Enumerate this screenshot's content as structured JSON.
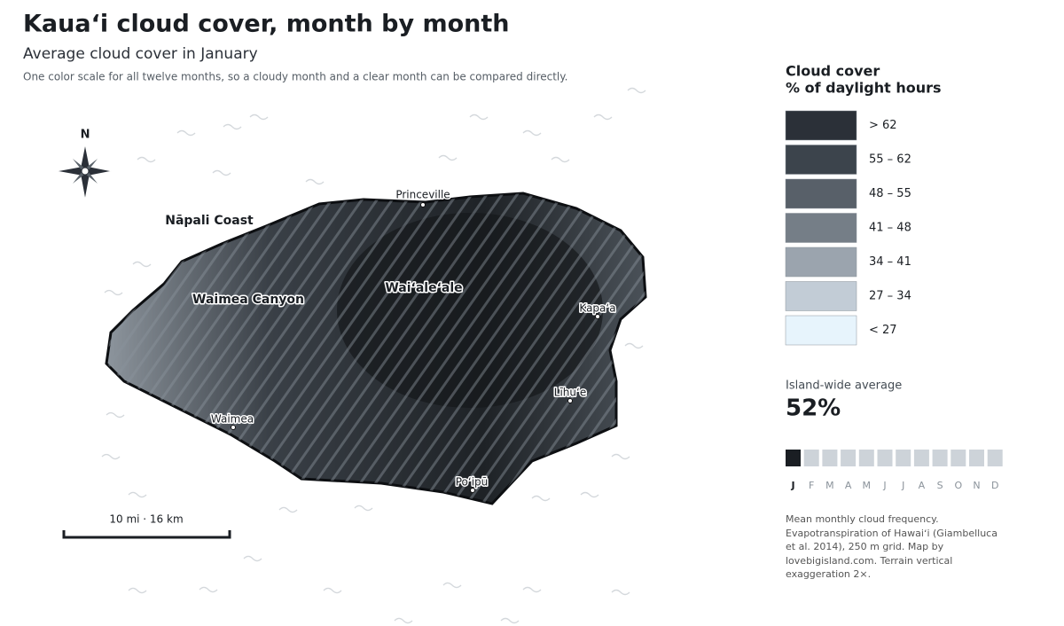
{
  "header": {
    "title": "Kauaʻi cloud cover, month by month",
    "subtitle": "Average cloud cover in January",
    "note": "One color scale for all twelve months, so a cloudy month and a clear month can be compared directly."
  },
  "map": {
    "north": "N",
    "scale": "10 mi · 16 km",
    "places": [
      {
        "label": "Princeville",
        "kind": "town"
      },
      {
        "label": "Nāpali Coast",
        "kind": "region"
      },
      {
        "label": "Waimea Canyon",
        "kind": "feature"
      },
      {
        "label": "Waiʻaleʻale",
        "kind": "feature"
      },
      {
        "label": "Kapaʻa",
        "kind": "town"
      },
      {
        "label": "Līhuʻe",
        "kind": "town"
      },
      {
        "label": "Waimea",
        "kind": "town"
      },
      {
        "label": "Poʻipū",
        "kind": "town"
      }
    ]
  },
  "legend": {
    "title": "Cloud cover",
    "subtitle": "% of daylight hours",
    "items": [
      {
        "label": "> 62",
        "color": "#2b3038"
      },
      {
        "label": "55 – 62",
        "color": "#3c444c"
      },
      {
        "label": "48 – 55",
        "color": "#586069"
      },
      {
        "label": "41 – 48",
        "color": "#757e87"
      },
      {
        "label": "34 – 41",
        "color": "#9ba4ae"
      },
      {
        "label": "27 – 34",
        "color": "#c2ccd6"
      },
      {
        "label": "< 27",
        "color": "#e7f4fc"
      }
    ]
  },
  "summary": {
    "label": "Island-wide average",
    "value": "52%"
  },
  "months": {
    "labels": [
      "J",
      "F",
      "M",
      "A",
      "M",
      "J",
      "J",
      "A",
      "S",
      "O",
      "N",
      "D"
    ],
    "selected": 0
  },
  "source": "Mean monthly cloud frequency. Evapotranspiration of Hawaiʻi (Giambelluca et al. 2014), 250 m grid. Map by lovebigisland.com. Terrain vertical exaggeration 2×."
}
